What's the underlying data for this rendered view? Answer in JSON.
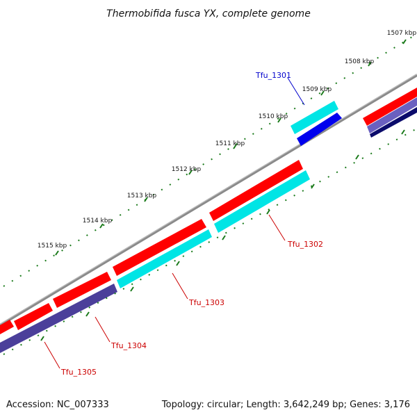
{
  "header": {
    "title": "Thermobifida fusca YX, complete genome"
  },
  "footer": {
    "accession": "Accession: NC_007333",
    "summary": "Topology: circular; Length: 3,642,249 bp; Genes: 3,176"
  },
  "ruler": {
    "ticks": [
      "1507 kbp",
      "1508 kbp",
      "1509 kbp",
      "1510 kbp",
      "1511 kbp",
      "1512 kbp",
      "1513 kbp",
      "1514 kbp",
      "1515 kbp"
    ]
  },
  "genes": [
    {
      "label": "Tfu_1301",
      "color": "#0000cc"
    },
    {
      "label": "Tfu_1302",
      "color": "#cc0000"
    },
    {
      "label": "Tfu_1303",
      "color": "#cc0000"
    },
    {
      "label": "Tfu_1304",
      "color": "#cc0000"
    },
    {
      "label": "Tfu_1305",
      "color": "#cc0000"
    }
  ],
  "colors": {
    "backbone": "#808080",
    "forward_cds": "#ff0000",
    "cyan_feature": "#00e6e6",
    "blue_feature": "#0000ee",
    "purple_feature": "#4b3f9a",
    "tick": "#1a7a1a"
  }
}
